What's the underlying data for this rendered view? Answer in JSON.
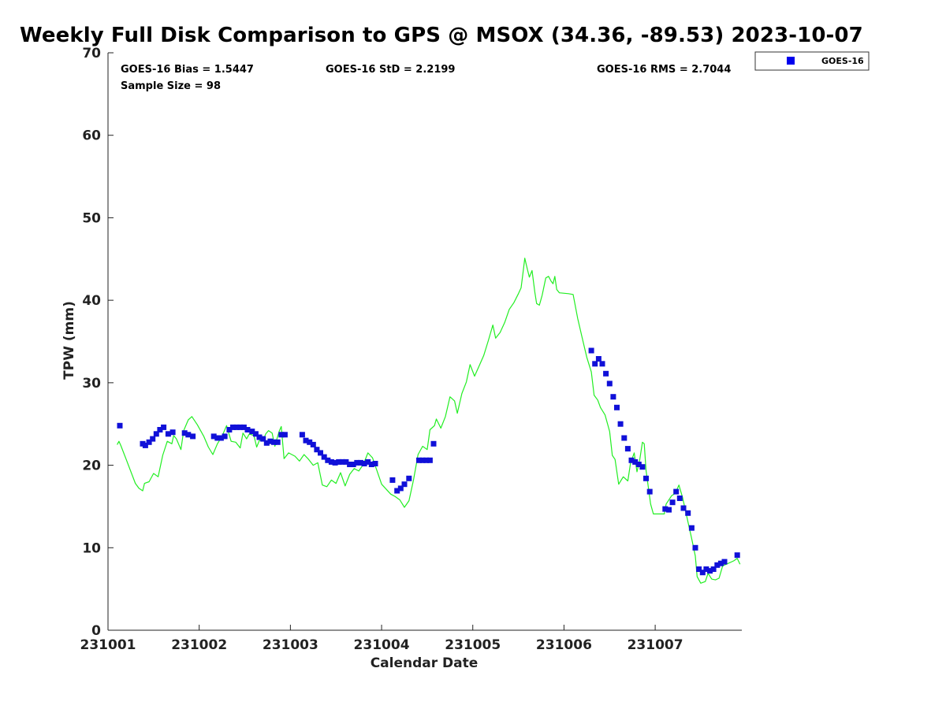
{
  "chart_data": {
    "type": "scatter+line",
    "title": "Weekly Full Disk Comparison to GPS @ MSOX (34.36, -89.53) 2023-10-07",
    "xlabel": "Calendar Date",
    "ylabel": "TPW (mm)",
    "xlim": [
      0,
      6.95
    ],
    "ylim": [
      0,
      70
    ],
    "x_ticks": [
      {
        "value": 0,
        "label": "231001"
      },
      {
        "value": 1,
        "label": "231002"
      },
      {
        "value": 2,
        "label": "231003"
      },
      {
        "value": 3,
        "label": "231004"
      },
      {
        "value": 4,
        "label": "231005"
      },
      {
        "value": 5,
        "label": "231006"
      },
      {
        "value": 6,
        "label": "231007"
      }
    ],
    "y_ticks": [
      0,
      10,
      20,
      30,
      40,
      50,
      60,
      70
    ],
    "stats": {
      "bias": "GOES-16 Bias = 1.5447",
      "std": "GOES-16 StD = 2.2199",
      "rms": "GOES-16 RMS = 2.7044",
      "sample": "Sample Size = 98"
    },
    "legend": {
      "label": "GOES-16",
      "marker_color": "#0000ee",
      "position": "top-right"
    },
    "series": [
      {
        "name": "GOES-16",
        "kind": "scatter",
        "color": "#1010d8",
        "points": [
          [
            0.13,
            24.8
          ],
          [
            0.38,
            22.6
          ],
          [
            0.41,
            22.4
          ],
          [
            0.45,
            22.8
          ],
          [
            0.49,
            23.2
          ],
          [
            0.53,
            23.8
          ],
          [
            0.57,
            24.3
          ],
          [
            0.61,
            24.6
          ],
          [
            0.66,
            23.8
          ],
          [
            0.71,
            24.0
          ],
          [
            0.84,
            23.9
          ],
          [
            0.88,
            23.7
          ],
          [
            0.93,
            23.5
          ],
          [
            1.16,
            23.5
          ],
          [
            1.2,
            23.3
          ],
          [
            1.24,
            23.3
          ],
          [
            1.28,
            23.5
          ],
          [
            1.33,
            24.3
          ],
          [
            1.37,
            24.6
          ],
          [
            1.41,
            24.6
          ],
          [
            1.45,
            24.6
          ],
          [
            1.49,
            24.6
          ],
          [
            1.53,
            24.3
          ],
          [
            1.58,
            24.1
          ],
          [
            1.62,
            23.8
          ],
          [
            1.66,
            23.4
          ],
          [
            1.7,
            23.2
          ],
          [
            1.74,
            22.7
          ],
          [
            1.78,
            22.9
          ],
          [
            1.82,
            22.8
          ],
          [
            1.86,
            22.8
          ],
          [
            1.9,
            23.7
          ],
          [
            1.94,
            23.7
          ],
          [
            2.13,
            23.7
          ],
          [
            2.17,
            23.0
          ],
          [
            2.21,
            22.8
          ],
          [
            2.25,
            22.5
          ],
          [
            2.29,
            21.9
          ],
          [
            2.33,
            21.5
          ],
          [
            2.37,
            21.0
          ],
          [
            2.41,
            20.6
          ],
          [
            2.45,
            20.4
          ],
          [
            2.49,
            20.3
          ],
          [
            2.53,
            20.4
          ],
          [
            2.57,
            20.4
          ],
          [
            2.61,
            20.4
          ],
          [
            2.65,
            20.1
          ],
          [
            2.69,
            20.1
          ],
          [
            2.73,
            20.3
          ],
          [
            2.77,
            20.3
          ],
          [
            2.81,
            20.2
          ],
          [
            2.85,
            20.4
          ],
          [
            2.89,
            20.1
          ],
          [
            2.93,
            20.2
          ],
          [
            3.12,
            18.2
          ],
          [
            3.17,
            16.9
          ],
          [
            3.21,
            17.2
          ],
          [
            3.25,
            17.7
          ],
          [
            3.3,
            18.4
          ],
          [
            3.41,
            20.6
          ],
          [
            3.45,
            20.6
          ],
          [
            3.49,
            20.6
          ],
          [
            3.53,
            20.6
          ],
          [
            3.57,
            22.6
          ],
          [
            5.3,
            33.9
          ],
          [
            5.34,
            32.3
          ],
          [
            5.38,
            32.9
          ],
          [
            5.42,
            32.3
          ],
          [
            5.46,
            31.1
          ],
          [
            5.5,
            29.9
          ],
          [
            5.54,
            28.3
          ],
          [
            5.58,
            27.0
          ],
          [
            5.62,
            25.0
          ],
          [
            5.66,
            23.3
          ],
          [
            5.7,
            22.0
          ],
          [
            5.74,
            20.6
          ],
          [
            5.78,
            20.4
          ],
          [
            5.82,
            20.1
          ],
          [
            5.86,
            19.8
          ],
          [
            5.9,
            18.4
          ],
          [
            5.94,
            16.8
          ],
          [
            6.11,
            14.7
          ],
          [
            6.15,
            14.6
          ],
          [
            6.19,
            15.5
          ],
          [
            6.23,
            16.8
          ],
          [
            6.27,
            16.0
          ],
          [
            6.31,
            14.8
          ],
          [
            6.36,
            14.2
          ],
          [
            6.4,
            12.4
          ],
          [
            6.44,
            10.0
          ],
          [
            6.48,
            7.4
          ],
          [
            6.52,
            7.0
          ],
          [
            6.56,
            7.4
          ],
          [
            6.6,
            7.2
          ],
          [
            6.64,
            7.4
          ],
          [
            6.68,
            7.9
          ],
          [
            6.72,
            8.1
          ],
          [
            6.76,
            8.3
          ],
          [
            6.9,
            9.1
          ]
        ]
      },
      {
        "name": "GPS",
        "kind": "line",
        "color": "#22ee22",
        "points": [
          [
            0.1,
            22.5
          ],
          [
            0.12,
            22.9
          ],
          [
            0.14,
            22.4
          ],
          [
            0.2,
            20.7
          ],
          [
            0.3,
            17.8
          ],
          [
            0.34,
            17.2
          ],
          [
            0.38,
            16.9
          ],
          [
            0.4,
            17.8
          ],
          [
            0.45,
            18.0
          ],
          [
            0.5,
            19.0
          ],
          [
            0.55,
            18.6
          ],
          [
            0.6,
            21.2
          ],
          [
            0.65,
            22.9
          ],
          [
            0.7,
            22.6
          ],
          [
            0.72,
            23.6
          ],
          [
            0.75,
            23.2
          ],
          [
            0.8,
            21.9
          ],
          [
            0.83,
            24.2
          ],
          [
            0.88,
            25.5
          ],
          [
            0.92,
            25.9
          ],
          [
            0.98,
            24.9
          ],
          [
            1.05,
            23.5
          ],
          [
            1.1,
            22.2
          ],
          [
            1.15,
            21.3
          ],
          [
            1.2,
            22.6
          ],
          [
            1.25,
            23.5
          ],
          [
            1.3,
            24.8
          ],
          [
            1.35,
            22.9
          ],
          [
            1.4,
            22.8
          ],
          [
            1.45,
            22.1
          ],
          [
            1.48,
            23.9
          ],
          [
            1.52,
            23.2
          ],
          [
            1.55,
            23.8
          ],
          [
            1.6,
            23.6
          ],
          [
            1.63,
            22.2
          ],
          [
            1.66,
            23.0
          ],
          [
            1.7,
            23.0
          ],
          [
            1.73,
            23.8
          ],
          [
            1.76,
            24.2
          ],
          [
            1.8,
            23.9
          ],
          [
            1.83,
            22.3
          ],
          [
            1.86,
            23.5
          ],
          [
            1.88,
            24.2
          ],
          [
            1.9,
            24.7
          ],
          [
            1.93,
            20.8
          ],
          [
            1.98,
            21.5
          ],
          [
            2.05,
            21.1
          ],
          [
            2.1,
            20.5
          ],
          [
            2.15,
            21.3
          ],
          [
            2.2,
            20.7
          ],
          [
            2.25,
            20.0
          ],
          [
            2.3,
            20.3
          ],
          [
            2.35,
            17.6
          ],
          [
            2.4,
            17.4
          ],
          [
            2.45,
            18.2
          ],
          [
            2.5,
            17.8
          ],
          [
            2.55,
            19.1
          ],
          [
            2.6,
            17.5
          ],
          [
            2.65,
            18.9
          ],
          [
            2.7,
            19.6
          ],
          [
            2.75,
            19.3
          ],
          [
            2.8,
            20.1
          ],
          [
            2.85,
            21.5
          ],
          [
            2.9,
            20.9
          ],
          [
            3.0,
            17.7
          ],
          [
            3.1,
            16.5
          ],
          [
            3.15,
            16.2
          ],
          [
            3.2,
            15.8
          ],
          [
            3.25,
            14.9
          ],
          [
            3.3,
            15.7
          ],
          [
            3.35,
            18.2
          ],
          [
            3.4,
            21.3
          ],
          [
            3.45,
            22.3
          ],
          [
            3.5,
            21.9
          ],
          [
            3.53,
            24.3
          ],
          [
            3.58,
            24.8
          ],
          [
            3.6,
            25.6
          ],
          [
            3.65,
            24.5
          ],
          [
            3.7,
            25.9
          ],
          [
            3.75,
            28.3
          ],
          [
            3.8,
            27.8
          ],
          [
            3.83,
            26.3
          ],
          [
            3.88,
            28.7
          ],
          [
            3.93,
            30.1
          ],
          [
            3.97,
            32.2
          ],
          [
            4.02,
            30.8
          ],
          [
            4.08,
            32.3
          ],
          [
            4.12,
            33.3
          ],
          [
            4.17,
            35.1
          ],
          [
            4.22,
            37.0
          ],
          [
            4.25,
            35.4
          ],
          [
            4.3,
            36.1
          ],
          [
            4.35,
            37.3
          ],
          [
            4.4,
            38.9
          ],
          [
            4.45,
            39.7
          ],
          [
            4.5,
            40.8
          ],
          [
            4.53,
            41.5
          ],
          [
            4.55,
            43.3
          ],
          [
            4.57,
            45.1
          ],
          [
            4.6,
            43.7
          ],
          [
            4.62,
            42.8
          ],
          [
            4.65,
            43.6
          ],
          [
            4.68,
            41.0
          ],
          [
            4.7,
            39.6
          ],
          [
            4.73,
            39.4
          ],
          [
            4.76,
            40.6
          ],
          [
            4.8,
            42.7
          ],
          [
            4.83,
            42.9
          ],
          [
            4.86,
            42.3
          ],
          [
            4.88,
            42.0
          ],
          [
            4.9,
            42.9
          ],
          [
            4.92,
            41.3
          ],
          [
            4.95,
            40.9
          ],
          [
            5.05,
            40.8
          ],
          [
            5.1,
            40.7
          ],
          [
            5.15,
            37.8
          ],
          [
            5.2,
            35.4
          ],
          [
            5.25,
            33.1
          ],
          [
            5.3,
            31.3
          ],
          [
            5.33,
            28.5
          ],
          [
            5.37,
            27.9
          ],
          [
            5.4,
            27.0
          ],
          [
            5.45,
            26.1
          ],
          [
            5.5,
            24.1
          ],
          [
            5.53,
            21.2
          ],
          [
            5.56,
            20.7
          ],
          [
            5.6,
            17.7
          ],
          [
            5.65,
            18.6
          ],
          [
            5.7,
            18.1
          ],
          [
            5.73,
            20.3
          ],
          [
            5.77,
            21.5
          ],
          [
            5.8,
            19.2
          ],
          [
            5.83,
            20.6
          ],
          [
            5.86,
            22.8
          ],
          [
            5.88,
            22.6
          ],
          [
            5.9,
            19.4
          ],
          [
            5.95,
            15.3
          ],
          [
            5.98,
            14.1
          ],
          [
            6.1,
            14.1
          ],
          [
            6.12,
            15.3
          ],
          [
            6.18,
            16.3
          ],
          [
            6.22,
            16.6
          ],
          [
            6.26,
            17.6
          ],
          [
            6.3,
            16.1
          ],
          [
            6.35,
            13.6
          ],
          [
            6.4,
            11.1
          ],
          [
            6.44,
            9.0
          ],
          [
            6.46,
            6.5
          ],
          [
            6.5,
            5.7
          ],
          [
            6.55,
            5.9
          ],
          [
            6.58,
            6.9
          ],
          [
            6.62,
            6.2
          ],
          [
            6.66,
            6.1
          ],
          [
            6.7,
            6.3
          ],
          [
            6.74,
            7.8
          ],
          [
            6.8,
            8.1
          ],
          [
            6.86,
            8.4
          ],
          [
            6.9,
            8.7
          ],
          [
            6.93,
            8.0
          ]
        ]
      }
    ]
  }
}
